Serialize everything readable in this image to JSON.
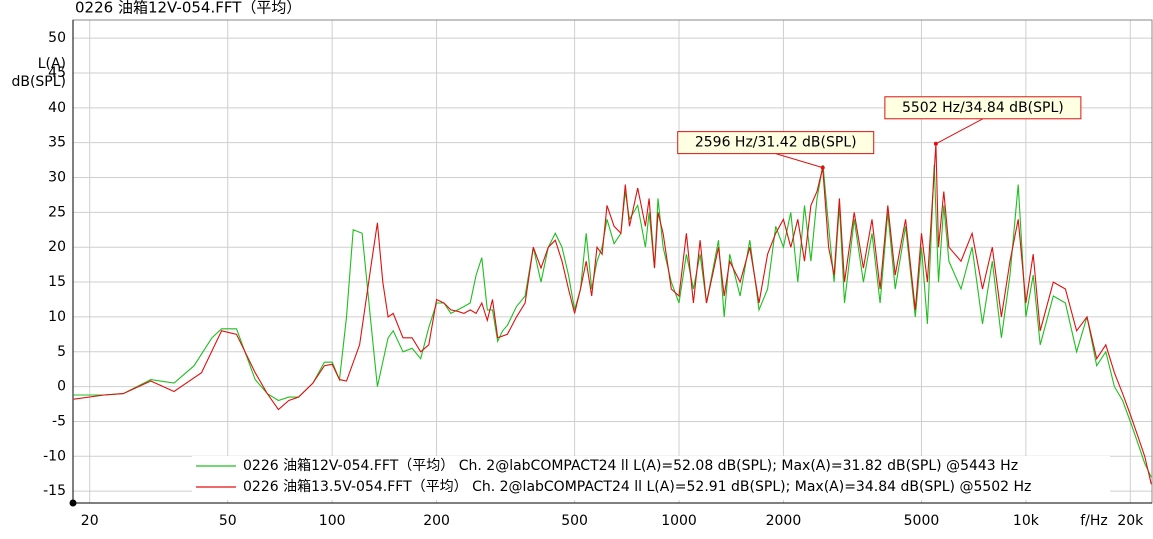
{
  "chart_data": {
    "type": "line",
    "title": "0226 油箱12V-054.FFT（平均）",
    "ylabel": [
      "L(A)",
      "dB(SPL)"
    ],
    "xlabel": "f/Hz",
    "xscale": "log",
    "grid": true,
    "legend": "bottom",
    "xlim": [
      17.9,
      23100
    ],
    "ylim": [
      -16.7,
      52.6
    ],
    "xticks": [
      20,
      50,
      100,
      200,
      500,
      1000,
      2000,
      5000,
      {
        "value": 10000,
        "label": "10k"
      },
      {
        "value": 20000,
        "label": "20k"
      }
    ],
    "yticks": [
      -15,
      -10,
      -5,
      0,
      5,
      10,
      15,
      20,
      25,
      30,
      35,
      40,
      45,
      50
    ],
    "series": [
      {
        "name": "0226 油箱12V-054.FFT（平均） Ch. 2@labCOMPACT24 ll L(A)=52.08 dB(SPL); Max(A)=31.82 dB(SPL) @5443 Hz",
        "color": "#1fbf1f",
        "x": [
          18,
          22,
          25,
          30,
          35,
          40,
          45,
          48,
          53,
          60,
          65,
          70,
          75,
          80,
          88,
          95,
          100,
          105,
          110,
          115,
          122,
          130,
          135,
          145,
          150,
          160,
          170,
          180,
          190,
          200,
          210,
          220,
          230,
          240,
          250,
          260,
          270,
          280,
          290,
          300,
          310,
          320,
          340,
          360,
          380,
          400,
          420,
          440,
          460,
          480,
          500,
          520,
          540,
          560,
          580,
          600,
          620,
          650,
          680,
          700,
          720,
          760,
          800,
          820,
          850,
          870,
          900,
          950,
          1000,
          1050,
          1100,
          1150,
          1200,
          1300,
          1350,
          1400,
          1500,
          1600,
          1700,
          1800,
          1900,
          2000,
          2100,
          2200,
          2300,
          2400,
          2500,
          2600,
          2700,
          2800,
          2900,
          3000,
          3200,
          3400,
          3600,
          3800,
          4000,
          4200,
          4500,
          4800,
          5000,
          5200,
          5443,
          5600,
          5800,
          6000,
          6500,
          7000,
          7500,
          8000,
          8500,
          9000,
          9500,
          10000,
          10500,
          11000,
          12000,
          13000,
          14000,
          15000,
          16000,
          17000,
          18000,
          19000,
          20000,
          21000,
          22000,
          23000
        ],
        "values": [
          -1.2,
          -1.2,
          -1,
          1,
          0.5,
          3,
          7,
          8.3,
          8.3,
          1,
          -1,
          -2,
          -1.5,
          -1.5,
          0.5,
          3.5,
          3.5,
          1,
          10,
          22.5,
          22,
          8,
          0,
          7,
          8,
          5,
          5.5,
          4,
          8.5,
          12,
          12,
          10.5,
          11,
          11.5,
          12,
          16,
          18.5,
          11,
          11,
          6.5,
          8,
          8.8,
          11.5,
          13,
          20,
          15,
          20,
          22,
          20,
          16,
          11,
          14,
          22,
          14,
          18,
          20,
          24,
          20.5,
          22,
          28,
          24,
          26,
          20,
          25,
          17,
          27,
          20,
          15,
          12,
          19,
          14,
          19,
          12,
          21,
          10,
          19,
          13,
          21,
          11,
          14,
          23,
          20,
          25,
          15,
          26,
          18,
          27,
          31.8,
          23,
          15,
          26,
          12,
          24,
          15,
          22,
          12,
          25,
          14,
          23,
          10,
          20,
          9,
          31.82,
          15,
          26,
          18,
          14,
          20,
          9,
          18,
          7,
          16,
          29,
          10,
          16,
          6,
          13,
          12,
          5,
          10,
          3,
          5,
          0,
          -2,
          -5,
          -8,
          -11,
          -13
        ]
      },
      {
        "name": "0226 油箱13.5V-054.FFT（平均） Ch. 2@labCOMPACT24 ll L(A)=52.91 dB(SPL); Max(A)=34.84 dB(SPL) @5502 Hz",
        "color": "#e01010",
        "x": [
          18,
          22,
          25,
          30,
          35,
          42,
          48,
          53,
          60,
          65,
          70,
          75,
          80,
          88,
          95,
          100,
          105,
          110,
          120,
          130,
          135,
          140,
          145,
          150,
          160,
          170,
          180,
          190,
          200,
          210,
          220,
          230,
          240,
          250,
          260,
          270,
          280,
          290,
          300,
          320,
          340,
          360,
          380,
          400,
          420,
          440,
          460,
          480,
          500,
          520,
          540,
          560,
          580,
          600,
          620,
          650,
          680,
          700,
          720,
          760,
          800,
          820,
          850,
          870,
          900,
          950,
          1000,
          1050,
          1100,
          1150,
          1200,
          1300,
          1350,
          1400,
          1500,
          1600,
          1700,
          1800,
          1900,
          2000,
          2100,
          2200,
          2300,
          2400,
          2500,
          2596,
          2700,
          2800,
          2900,
          3000,
          3200,
          3400,
          3600,
          3800,
          4000,
          4200,
          4500,
          4800,
          5000,
          5200,
          5502,
          5600,
          5800,
          6000,
          6500,
          7000,
          7500,
          8000,
          8500,
          9000,
          9500,
          10000,
          10500,
          11000,
          12000,
          13000,
          14000,
          15000,
          16000,
          17000,
          18000,
          19000,
          20000,
          21000,
          22000,
          23000
        ],
        "values": [
          -1.8,
          -1.2,
          -1,
          0.8,
          -0.7,
          2,
          8,
          7.5,
          2,
          -1,
          -3.3,
          -2,
          -1.5,
          0.5,
          3,
          3.2,
          1,
          0.8,
          6,
          18,
          23.5,
          15,
          10,
          10.5,
          7,
          7,
          5,
          6,
          12.5,
          12,
          11,
          10.8,
          10.5,
          11,
          10.5,
          12,
          9.5,
          12.5,
          7,
          7.5,
          10,
          12,
          20,
          17,
          20,
          21,
          18,
          14,
          10.5,
          14,
          18,
          13,
          20,
          19,
          26,
          23,
          22,
          29,
          23,
          28.5,
          23,
          27,
          17,
          25,
          22,
          14,
          13,
          22,
          12,
          21,
          12,
          20,
          13,
          18,
          15,
          20,
          12,
          19,
          22,
          24,
          20,
          24,
          18,
          26,
          28,
          31.42,
          20,
          16,
          27,
          15,
          25,
          17,
          24,
          14,
          26,
          16,
          24,
          11,
          22,
          15,
          34.84,
          20,
          28,
          20,
          18,
          22,
          14,
          20,
          10,
          18,
          24,
          12,
          19,
          8,
          15,
          14,
          8,
          10,
          4,
          6,
          2,
          -1,
          -4,
          -7,
          -10,
          -14
        ]
      }
    ],
    "annotations": [
      {
        "text": "2596 Hz/31.42 dB(SPL)",
        "x": 2596,
        "y": 31.42
      },
      {
        "text": "5502 Hz/34.84 dB(SPL)",
        "x": 5502,
        "y": 34.84
      }
    ]
  }
}
